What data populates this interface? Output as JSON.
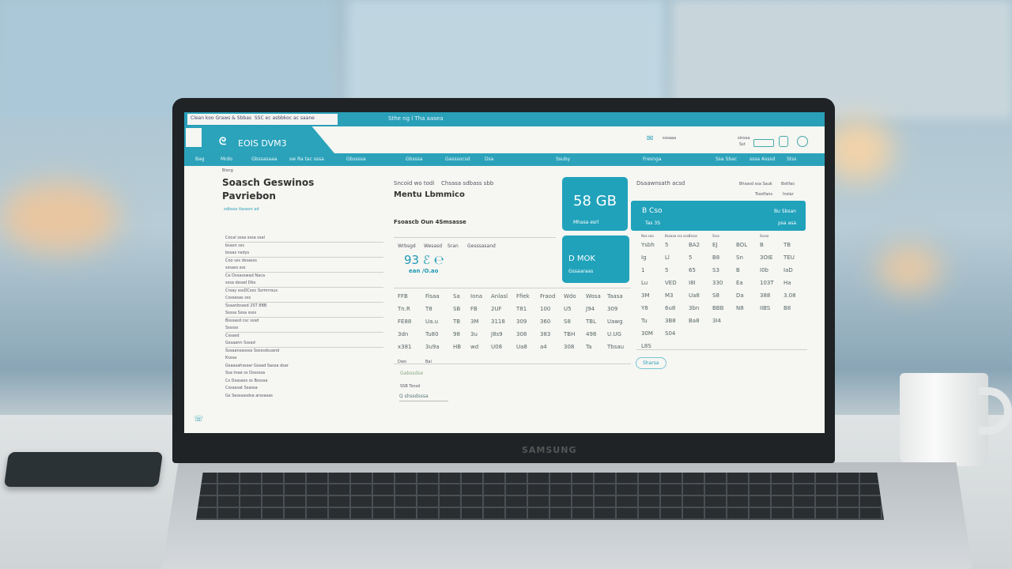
{
  "browser": {
    "tab_title": "Clean koo Graws & Sbbas",
    "tab_subtitle": "SSC ec asbbkoc ac saane",
    "address": "Sthe ng l Tha aasea"
  },
  "app": {
    "logo_text": "EOIS DVM3",
    "header_link": "sssaaa",
    "header_right": [
      "sinssa",
      "Sst"
    ]
  },
  "nav": {
    "items": [
      "Bag",
      "Mrdo",
      "Gbssasaaa",
      "sw Ra tac sssa",
      "Gbssssa",
      "Gbsssa",
      "Gasssocsd",
      "Dsa",
      "Ssuby",
      "Fresnga",
      "Ssa Sbac",
      "sssa Asssd",
      "Stss"
    ]
  },
  "left": {
    "kicker": "Bisng",
    "title_line1": "Soasch Geswinos",
    "title_line2": "Pavriebon",
    "subtitle": "sdbssa tlasesn ad",
    "fields": [
      "Cocal sssa sssa ssal",
      "bsasn sss",
      "bssas nsdys",
      "Coo sss dssasss",
      "sssass sss",
      "Ce Dssasswad Naca",
      "sssa dssad Dbs",
      "Crsay sssDCsoc Ssrmrrsus",
      "Csssasas sss",
      "Ssaanbsasd 2ST 8BB",
      "Ssssa Sssa ssss",
      "Bsssasd csc sssd",
      "Ssssss",
      "Cssasd",
      "Gssaann Sssad",
      "Sssaansasssa Sosssdsuand",
      "Ksssa",
      "Gsaasahsssar Gssad Sassa dsar",
      "Ssa tnae ss Dsssssa",
      "Cs Dsasass ss Bssssa",
      "Csssasat Ssassa",
      "Gs Sesssasdsa arssasas"
    ]
  },
  "middle": {
    "label1": "Sncoid wo todi",
    "label2": "Chsasa sdbass sbb",
    "title": "Mentu Lbmmico",
    "section": "Fsoascb Oun 4Smsasse",
    "metric_headers": [
      "Wrbsgd",
      "Wesasd",
      "Sran",
      "Gesssasand"
    ],
    "metric_value": "93 ℰ ℮",
    "metric_sub": "ean /O.ao",
    "table": [
      [
        "FFB",
        "Fisaa",
        "Sa",
        "Iona",
        "Anlasl",
        "Ffiek",
        "Fraod",
        "Wdo",
        "Wosa",
        "Taasa"
      ],
      [
        "Tn.R",
        "T8",
        "SB",
        "FB",
        "2UF",
        "T81",
        "100",
        "U5",
        "J94",
        "309"
      ],
      [
        "FE88",
        "Ua.u",
        "TB",
        "3M",
        "3118",
        "309",
        "360",
        "S8",
        "TBL",
        "Uawg"
      ],
      [
        "3dn",
        "Tu80",
        "98",
        "3u",
        "J8s9",
        "308",
        "383",
        "TBH",
        "498",
        "U.UG"
      ],
      [
        "x381",
        "3u9a",
        "HB",
        "wd",
        "U08",
        "Ua8",
        "a4",
        "308",
        "Ta",
        "Tbsau"
      ]
    ],
    "table_footer": [
      "Dwo",
      "Bai"
    ],
    "link": "Gabssdse",
    "input_label": "SSB Tsnsd",
    "search_value": "Q shssdsssa"
  },
  "cards": [
    {
      "value": "58 GB",
      "label": "Mhasa esrl"
    },
    {
      "value": "D MOK",
      "label": "Gssaaraas"
    }
  ],
  "right": {
    "title": "Dsaawnsath acsd",
    "links": [
      "Bhsasd ssa Sauk",
      "Bstlfas"
    ],
    "links2": [
      "Tssslfans",
      "Inslar"
    ],
    "banner": {
      "value": "B Cso",
      "sub": "Tas 3S",
      "right_value": "Bu Sbsan",
      "right_sub": "psa asa"
    },
    "headers": [
      "Nsa saa",
      "Bssaaa sss sssd",
      "Cssss",
      "Ssss",
      "",
      "Ssssa"
    ],
    "grid": [
      [
        "Ysbh",
        "5",
        "BA2",
        "EJ",
        "BOL",
        "B",
        "TB"
      ],
      [
        "Ig",
        "Ll",
        "5",
        "B8",
        "Sn",
        "3OIE",
        "TEU"
      ],
      [
        "1",
        "5",
        "65",
        "S3",
        "B",
        "I0b",
        "IaD"
      ],
      [
        "Lu",
        "VED",
        "I8I",
        "330",
        "Ea",
        "103T",
        "Ha"
      ],
      [
        "3M",
        "M3",
        "Ua8",
        "S8",
        "Da",
        "388",
        "3.08"
      ],
      [
        "Y8",
        "6u8",
        "3bn",
        "BBB",
        "N8",
        "IIBS",
        "B8"
      ],
      [
        "Tu",
        "3B8",
        "Ba8",
        "3I4"
      ],
      [
        "30M",
        "S04"
      ],
      [
        "L8S"
      ]
    ],
    "button": "Sharsa"
  }
}
